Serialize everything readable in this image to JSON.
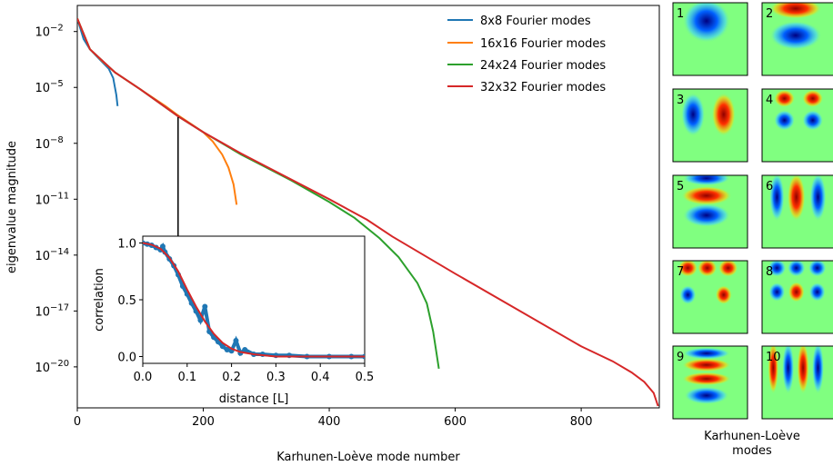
{
  "chart_data": [
    {
      "type": "line",
      "title": "",
      "xlabel": "Karhunen-Loève mode number",
      "ylabel": "eigenvalue magnitude",
      "y_scale": "log",
      "xlim": [
        0,
        924
      ],
      "ylim_exp": [
        -22.2,
        -0.6
      ],
      "xticks": [
        "0",
        "200",
        "400",
        "600",
        "800"
      ],
      "yticks": [
        {
          "exp": -2,
          "label": "10",
          "sup": "−2"
        },
        {
          "exp": -5,
          "label": "10",
          "sup": "−5"
        },
        {
          "exp": -8,
          "label": "10",
          "sup": "−8"
        },
        {
          "exp": -11,
          "label": "10",
          "sup": "−11"
        },
        {
          "exp": -14,
          "label": "10",
          "sup": "−14"
        },
        {
          "exp": -17,
          "label": "10",
          "sup": "−17"
        },
        {
          "exp": -20,
          "label": "10",
          "sup": "−20"
        }
      ],
      "legend_position": "top-right",
      "series": [
        {
          "name": "8x8 Fourier modes",
          "color": "#1f77b4",
          "points": [
            [
              0,
              -1.3
            ],
            [
              10,
              -2.4
            ],
            [
              20,
              -2.95
            ],
            [
              30,
              -3.3
            ],
            [
              40,
              -3.65
            ],
            [
              50,
              -4.0
            ],
            [
              57,
              -4.5
            ],
            [
              62,
              -5.4
            ],
            [
              64,
              -6.0
            ]
          ]
        },
        {
          "name": "16x16 Fourier modes",
          "color": "#ff7f0e",
          "points": [
            [
              0,
              -1.3
            ],
            [
              20,
              -2.95
            ],
            [
              40,
              -3.6
            ],
            [
              60,
              -4.2
            ],
            [
              100,
              -5.1
            ],
            [
              140,
              -6.0
            ],
            [
              160,
              -6.5
            ],
            [
              180,
              -6.95
            ],
            [
              200,
              -7.4
            ],
            [
              215,
              -7.9
            ],
            [
              230,
              -8.6
            ],
            [
              240,
              -9.3
            ],
            [
              248,
              -10.2
            ],
            [
              253,
              -11.3
            ]
          ]
        },
        {
          "name": "24x24 Fourier modes",
          "color": "#2ca02c",
          "points": [
            [
              0,
              -1.3
            ],
            [
              20,
              -2.95
            ],
            [
              60,
              -4.2
            ],
            [
              100,
              -5.1
            ],
            [
              160,
              -6.55
            ],
            [
              200,
              -7.4
            ],
            [
              260,
              -8.6
            ],
            [
              300,
              -9.3
            ],
            [
              340,
              -10.0
            ],
            [
              400,
              -11.15
            ],
            [
              440,
              -12.0
            ],
            [
              480,
              -13.1
            ],
            [
              510,
              -14.1
            ],
            [
              540,
              -15.5
            ],
            [
              555,
              -16.6
            ],
            [
              565,
              -18.1
            ],
            [
              570,
              -19.2
            ],
            [
              574,
              -20.1
            ]
          ]
        },
        {
          "name": "32x32 Fourier modes",
          "color": "#d62728",
          "points": [
            [
              0,
              -1.3
            ],
            [
              20,
              -2.95
            ],
            [
              60,
              -4.2
            ],
            [
              100,
              -5.1
            ],
            [
              160,
              -6.55
            ],
            [
              200,
              -7.4
            ],
            [
              260,
              -8.55
            ],
            [
              300,
              -9.25
            ],
            [
              400,
              -11.0
            ],
            [
              460,
              -12.1
            ],
            [
              500,
              -13.0
            ],
            [
              600,
              -15.0
            ],
            [
              700,
              -16.95
            ],
            [
              800,
              -18.9
            ],
            [
              850,
              -19.7
            ],
            [
              880,
              -20.3
            ],
            [
              900,
              -20.8
            ],
            [
              915,
              -21.4
            ],
            [
              922,
              -22.1
            ]
          ]
        }
      ],
      "marker_line": {
        "x": 160,
        "exp_top": -6.6,
        "exp_bottom": -13.5
      }
    },
    {
      "type": "line",
      "title": "",
      "xlabel": "distance [L]",
      "ylabel": "correlation",
      "xlim": [
        0,
        0.5
      ],
      "ylim": [
        -0.06,
        1.06
      ],
      "xticks": [
        "0.0",
        "0.1",
        "0.2",
        "0.3",
        "0.4",
        "0.5"
      ],
      "yticks": [
        "0.0",
        "0.5",
        "1.0"
      ],
      "series": [
        {
          "name": "",
          "kind": "scatter",
          "color": "#1f77b4",
          "points": [
            [
              0.0,
              1.0
            ],
            [
              0.01,
              0.99
            ],
            [
              0.02,
              0.98
            ],
            [
              0.03,
              0.96
            ],
            [
              0.04,
              0.94
            ],
            [
              0.045,
              0.97
            ],
            [
              0.05,
              0.92
            ],
            [
              0.06,
              0.86
            ],
            [
              0.07,
              0.8
            ],
            [
              0.08,
              0.72
            ],
            [
              0.09,
              0.62
            ],
            [
              0.1,
              0.55
            ],
            [
              0.11,
              0.47
            ],
            [
              0.12,
              0.4
            ],
            [
              0.13,
              0.32
            ],
            [
              0.14,
              0.44
            ],
            [
              0.15,
              0.22
            ],
            [
              0.16,
              0.17
            ],
            [
              0.17,
              0.13
            ],
            [
              0.18,
              0.09
            ],
            [
              0.19,
              0.06
            ],
            [
              0.2,
              0.05
            ],
            [
              0.21,
              0.14
            ],
            [
              0.22,
              0.03
            ],
            [
              0.23,
              0.06
            ],
            [
              0.25,
              0.02
            ],
            [
              0.27,
              0.02
            ],
            [
              0.3,
              0.01
            ],
            [
              0.33,
              0.01
            ],
            [
              0.37,
              0.0
            ],
            [
              0.42,
              0.0
            ],
            [
              0.47,
              0.0
            ],
            [
              0.5,
              0.0
            ]
          ]
        },
        {
          "name": "",
          "kind": "line",
          "color": "#d62728",
          "points": [
            [
              0.0,
              1.0
            ],
            [
              0.02,
              0.985
            ],
            [
              0.04,
              0.95
            ],
            [
              0.06,
              0.87
            ],
            [
              0.08,
              0.75
            ],
            [
              0.1,
              0.59
            ],
            [
              0.12,
              0.44
            ],
            [
              0.14,
              0.31
            ],
            [
              0.16,
              0.2
            ],
            [
              0.18,
              0.12
            ],
            [
              0.2,
              0.07
            ],
            [
              0.22,
              0.04
            ],
            [
              0.25,
              0.02
            ],
            [
              0.3,
              0.0
            ],
            [
              0.4,
              0.0
            ],
            [
              0.5,
              0.0
            ]
          ]
        }
      ]
    },
    {
      "type": "heatmap",
      "title": "",
      "caption_line1": "Karhunen-Loève",
      "caption_line2": "modes",
      "panels": [
        "1",
        "2",
        "3",
        "4",
        "5",
        "6",
        "7",
        "8",
        "9",
        "10"
      ]
    }
  ]
}
